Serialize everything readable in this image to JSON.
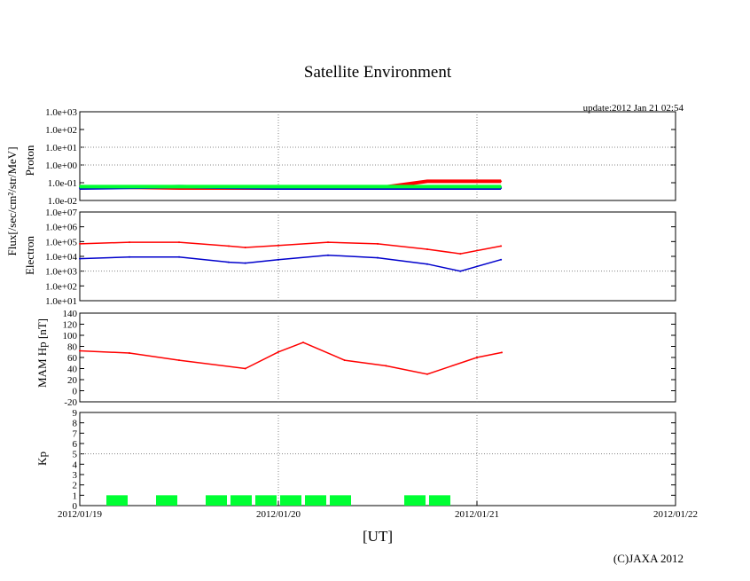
{
  "title": "Satellite Environment",
  "update_text": "update:2012 Jan 21 02:54",
  "copyright": "(C)JAXA 2012",
  "x_axis_label": "[UT]",
  "x_tick_labels": [
    "2012/01/19",
    "2012/01/20",
    "2012/01/21",
    "2012/01/22"
  ],
  "flux_unit_label": "Flux[/sec/cm²/str/MeV]",
  "colors": {
    "red": "#ff0000",
    "blue": "#0000cc",
    "green": "#00ff33",
    "kp_bar": "#00ff33",
    "grid": "#888888"
  },
  "chart_data": [
    {
      "type": "line",
      "name": "proton",
      "ylabel": "Proton",
      "yscale": "log",
      "ylim": [
        0.01,
        1000
      ],
      "y_tick_labels": [
        "1.0e+03",
        "1.0e+02",
        "1.0e+01",
        "1.0e+00",
        "1.0e-01",
        "1.0e-02"
      ],
      "xlim": [
        "2012-01-19T00:00",
        "2012-01-22T00:00"
      ],
      "series": [
        {
          "color": "#ff0000",
          "x": [
            "2012-01-19T00:00",
            "2012-01-19T12:00",
            "2012-01-20T00:00",
            "2012-01-20T12:00",
            "2012-01-20T18:00",
            "2012-01-21T02:54"
          ],
          "y": [
            0.06,
            0.05,
            0.05,
            0.05,
            0.12,
            0.12
          ]
        },
        {
          "color": "#0000cc",
          "x": [
            "2012-01-19T00:00",
            "2012-01-19T12:00",
            "2012-01-20T00:00",
            "2012-01-20T12:00",
            "2012-01-20T18:00",
            "2012-01-21T02:54"
          ],
          "y": [
            0.05,
            0.06,
            0.05,
            0.05,
            0.05,
            0.05
          ]
        },
        {
          "color": "#00ff33",
          "x": [
            "2012-01-19T00:00",
            "2012-01-19T12:00",
            "2012-01-20T00:00",
            "2012-01-20T12:00",
            "2012-01-20T18:00",
            "2012-01-21T02:54"
          ],
          "y": [
            0.06,
            0.06,
            0.06,
            0.06,
            0.06,
            0.06
          ]
        }
      ]
    },
    {
      "type": "line",
      "name": "electron",
      "ylabel": "Electron",
      "yscale": "log",
      "ylim": [
        10,
        10000000
      ],
      "y_tick_labels": [
        "1.0e+07",
        "1.0e+06",
        "1.0e+05",
        "1.0e+04",
        "1.0e+03",
        "1.0e+02",
        "1.0e+01"
      ],
      "xlim": [
        "2012-01-19T00:00",
        "2012-01-22T00:00"
      ],
      "series": [
        {
          "color": "#ff0000",
          "x": [
            "2012-01-19T00:00",
            "2012-01-19T06:00",
            "2012-01-19T12:00",
            "2012-01-19T18:00",
            "2012-01-19T20:00",
            "2012-01-20T00:00",
            "2012-01-20T06:00",
            "2012-01-20T12:00",
            "2012-01-20T18:00",
            "2012-01-20T22:00",
            "2012-01-21T02:54"
          ],
          "y": [
            70000,
            90000,
            90000,
            50000,
            40000,
            55000,
            90000,
            70000,
            30000,
            15000,
            50000
          ]
        },
        {
          "color": "#0000cc",
          "x": [
            "2012-01-19T00:00",
            "2012-01-19T06:00",
            "2012-01-19T12:00",
            "2012-01-19T18:00",
            "2012-01-19T20:00",
            "2012-01-20T00:00",
            "2012-01-20T06:00",
            "2012-01-20T12:00",
            "2012-01-20T18:00",
            "2012-01-20T22:00",
            "2012-01-21T02:54"
          ],
          "y": [
            7000,
            9000,
            9000,
            4000,
            3500,
            6000,
            12000,
            8000,
            3000,
            1000,
            6000
          ]
        }
      ]
    },
    {
      "type": "line",
      "name": "mam_hp",
      "ylabel": "MAM Hp [nT]",
      "ylim": [
        -20,
        140
      ],
      "y_tick_labels": [
        "140",
        "120",
        "100",
        "80",
        "60",
        "40",
        "20",
        "0",
        "-20"
      ],
      "xlim": [
        "2012-01-19T00:00",
        "2012-01-22T00:00"
      ],
      "series": [
        {
          "color": "#ff0000",
          "x": [
            "2012-01-19T00:00",
            "2012-01-19T06:00",
            "2012-01-19T12:00",
            "2012-01-19T20:00",
            "2012-01-20T00:00",
            "2012-01-20T03:00",
            "2012-01-20T08:00",
            "2012-01-20T13:00",
            "2012-01-20T18:00",
            "2012-01-21T00:00",
            "2012-01-21T03:00"
          ],
          "y": [
            72,
            68,
            55,
            40,
            70,
            87,
            55,
            45,
            30,
            60,
            69
          ]
        }
      ]
    },
    {
      "type": "bar",
      "name": "kp",
      "ylabel": "Kp",
      "ylim": [
        0,
        9
      ],
      "y_tick_labels": [
        "9",
        "8",
        "7",
        "6",
        "5",
        "4",
        "3",
        "2",
        "1",
        "0"
      ],
      "xlim": [
        "2012-01-19T00:00",
        "2012-01-22T00:00"
      ],
      "bars": [
        {
          "start": "2012-01-19T03:00",
          "end": "2012-01-19T06:00",
          "value": 1
        },
        {
          "start": "2012-01-19T09:00",
          "end": "2012-01-19T12:00",
          "value": 1
        },
        {
          "start": "2012-01-19T15:00",
          "end": "2012-01-19T18:00",
          "value": 1
        },
        {
          "start": "2012-01-19T18:00",
          "end": "2012-01-19T21:00",
          "value": 1
        },
        {
          "start": "2012-01-19T21:00",
          "end": "2012-01-20T00:00",
          "value": 1
        },
        {
          "start": "2012-01-20T00:00",
          "end": "2012-01-20T03:00",
          "value": 1
        },
        {
          "start": "2012-01-20T03:00",
          "end": "2012-01-20T06:00",
          "value": 1
        },
        {
          "start": "2012-01-20T06:00",
          "end": "2012-01-20T09:00",
          "value": 1
        },
        {
          "start": "2012-01-20T15:00",
          "end": "2012-01-20T18:00",
          "value": 1
        },
        {
          "start": "2012-01-20T18:00",
          "end": "2012-01-20T21:00",
          "value": 1
        }
      ]
    }
  ]
}
